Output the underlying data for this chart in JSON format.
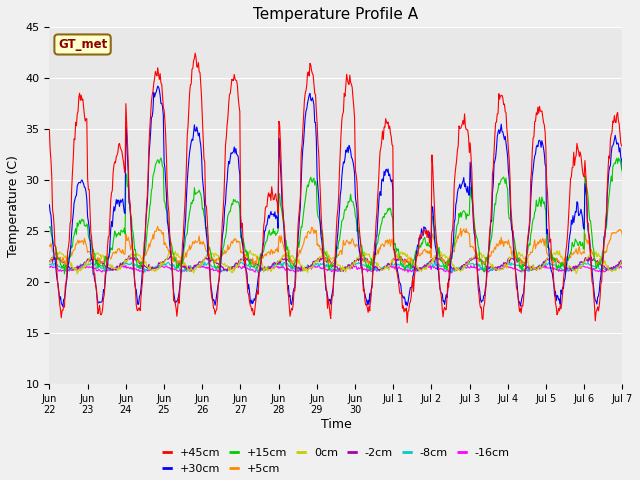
{
  "title": "Temperature Profile A",
  "xlabel": "Time",
  "ylabel": "Temperature (C)",
  "ylim": [
    10,
    45
  ],
  "fig_facecolor": "#f0f0f0",
  "ax_facecolor": "#e8e8e8",
  "legend_label": "GT_met",
  "legend_label_color": "#8B0000",
  "legend_bg": "#ffffcc",
  "legend_border": "#8B6914",
  "series_colors": {
    "+45cm": "#ff0000",
    "+30cm": "#0000ff",
    "+15cm": "#00cc00",
    "+5cm": "#ff8800",
    "0cm": "#cccc00",
    "-2cm": "#aa00aa",
    "-8cm": "#00cccc",
    "-16cm": "#ff00ff"
  },
  "x_tick_labels": [
    "Jun\n22",
    "Jun\n23",
    "Jun\n24",
    "Jun\n25",
    "Jun\n26",
    "Jun\n27",
    "Jun\n28",
    "Jun\n29",
    "Jun\n30",
    "Jul 1",
    "Jul 2",
    "Jul 3",
    "Jul 4",
    "Jul 5",
    "Jul 6",
    "Jul 7"
  ],
  "n_days": 16,
  "pts_per_day": 48,
  "seed": 7
}
